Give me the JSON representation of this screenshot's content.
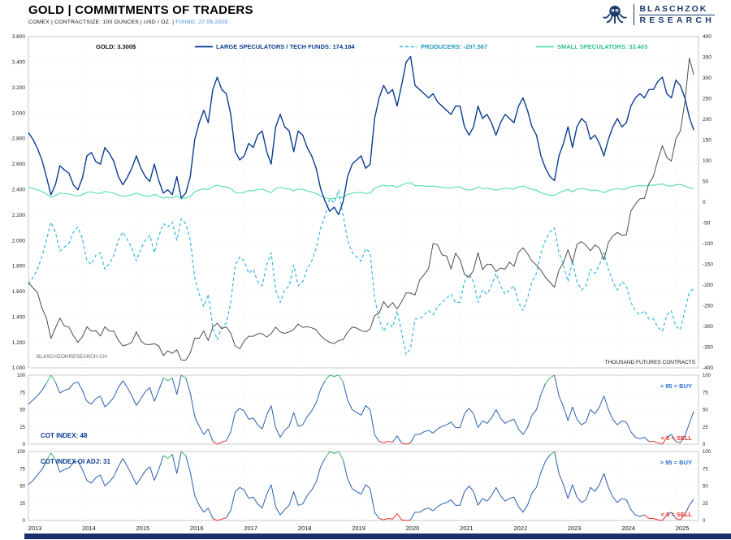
{
  "header": {
    "title": "GOLD | COMMITMENTS OF TRADERS",
    "subtitle_plain": "COMEX | CONTRACTSIZE: 100 OUNCES | USD / OZ. |",
    "subtitle_fixing": "FIXING: 27.05.2025",
    "logo_line1": "BLASCHZOK",
    "logo_line2": "RESEARCH"
  },
  "legend": {
    "gold": "GOLD: 3.300$",
    "large_specs": "LARGE SPECULATORS / TECH FUNDS: 174.184",
    "producers": "PRODUCERS: -207.587",
    "small_specs": "SMALL SPECULATORS: 33.403"
  },
  "labels": {
    "watermark": "BLASCHZOKRESEARCH.CH",
    "right_axis_title": "THOUSAND FUTURES CONTRACTS",
    "buy": "> 95 = BUY",
    "sell": "< 5 = SELL"
  },
  "colors": {
    "gold_line": "#4d4d4d",
    "large_specs": "#0a3d91",
    "producers": "#35b6e6",
    "small_specs": "#5fe0b2",
    "producers_text": "#2596c4",
    "small_specs_text": "#2fbf93",
    "cot_blue": "#2b5fad",
    "cot_green": "#3cb96a",
    "cot_red": "#e63329",
    "grid": "#e4e4e4",
    "border": "#bbbbbb",
    "axis_text": "#222222",
    "watermark_text": "#666666",
    "buy_text": "#2b6fd4",
    "sell_text": "#e63329",
    "bottom_bar": "#1b2f6e"
  },
  "chart_data": {
    "type": "line",
    "x_range": [
      2013,
      2025.42
    ],
    "x_ticks": [
      2013,
      2014,
      2015,
      2016,
      2017,
      2018,
      2019,
      2020,
      2021,
      2022,
      2023,
      2024,
      2025
    ],
    "points_per_year": 12,
    "price_axis": {
      "min": 1000,
      "max": 3600,
      "tick": 200,
      "side": "left"
    },
    "contracts_axis": {
      "min": -400,
      "max": 400,
      "tick": 50,
      "side": "right"
    },
    "series": [
      {
        "name": "GOLD",
        "axis": "price",
        "style": "solid",
        "width": 1,
        "color_key": "gold_line",
        "values": [
          1670,
          1628,
          1592,
          1470,
          1392,
          1230,
          1312,
          1390,
          1328,
          1320,
          1252,
          1200,
          1244,
          1322,
          1288,
          1292,
          1250,
          1322,
          1288,
          1288,
          1216,
          1172,
          1182,
          1200,
          1282,
          1212,
          1184,
          1182,
          1190,
          1172,
          1096,
          1134,
          1114,
          1142,
          1062,
          1060,
          1118,
          1234,
          1232,
          1290,
          1214,
          1320,
          1350,
          1308,
          1322,
          1272,
          1172,
          1150,
          1212,
          1248,
          1248,
          1268,
          1268,
          1242,
          1268,
          1320,
          1282,
          1270,
          1282,
          1302,
          1344,
          1318,
          1324,
          1314,
          1300,
          1252,
          1222,
          1200,
          1190,
          1214,
          1222,
          1282,
          1320,
          1312,
          1292,
          1282,
          1306,
          1410,
          1428,
          1520,
          1472,
          1512,
          1462,
          1518,
          1588,
          1586,
          1572,
          1688,
          1730,
          1782,
          1976,
          1966,
          1886,
          1878,
          1776,
          1900,
          1848,
          1734,
          1708,
          1768,
          1904,
          1770,
          1814,
          1812,
          1756,
          1784,
          1774,
          1830,
          1796,
          1908,
          1942,
          1896,
          1838,
          1806,
          1766,
          1710,
          1672,
          1632,
          1768,
          1824,
          1928,
          1826,
          1968,
          1990,
          1962,
          1918,
          1964,
          1940,
          1848,
          1984,
          2036,
          2062,
          2040,
          2044,
          2230,
          2286,
          2326,
          2330,
          2446,
          2502,
          2634,
          2744,
          2650,
          2624,
          2798,
          2858,
          3085,
          3430,
          3300
        ]
      },
      {
        "name": "LARGE SPECULATORS / TECH FUNDS",
        "axis": "contracts",
        "style": "solid",
        "width": 1.4,
        "color_key": "large_specs",
        "values": [
          168,
          152,
          130,
          102,
          62,
          18,
          42,
          88,
          78,
          70,
          42,
          30,
          58,
          112,
          120,
          98,
          92,
          132,
          118,
          98,
          62,
          42,
          60,
          82,
          112,
          82,
          62,
          50,
          92,
          52,
          22,
          30,
          18,
          62,
          10,
          22,
          62,
          152,
          192,
          222,
          192,
          272,
          302,
          272,
          262,
          212,
          122,
          102,
          112,
          142,
          132,
          162,
          172,
          122,
          92,
          182,
          212,
          182,
          172,
          122,
          172,
          162,
          132,
          112,
          82,
          32,
          2,
          -22,
          -12,
          -30,
          2,
          62,
          92,
          102,
          112,
          82,
          92,
          202,
          252,
          282,
          262,
          272,
          232,
          282,
          338,
          352,
          282,
          272,
          262,
          252,
          262,
          242,
          232,
          222,
          212,
          232,
          232,
          182,
          162,
          182,
          232,
          202,
          212,
          192,
          162,
          192,
          212,
          202,
          192,
          232,
          252,
          222,
          182,
          162,
          112,
          82,
          62,
          52,
          112,
          142,
          182,
          132,
          182,
          202,
          192,
          152,
          162,
          142,
          112,
          152,
          182,
          202,
          182,
          192,
          232,
          252,
          262,
          252,
          272,
          272,
          292,
          302,
          262,
          252,
          295,
          282,
          252,
          205,
          174
        ]
      },
      {
        "name": "PRODUCERS",
        "axis": "contracts",
        "style": "dashed",
        "width": 1.2,
        "color_key": "producers",
        "values": [
          -198,
          -182,
          -162,
          -132,
          -92,
          -48,
          -72,
          -118,
          -108,
          -100,
          -72,
          -60,
          -88,
          -142,
          -150,
          -128,
          -122,
          -162,
          -148,
          -128,
          -92,
          -72,
          -90,
          -112,
          -142,
          -112,
          -92,
          -80,
          -122,
          -82,
          -52,
          -60,
          -48,
          -92,
          -40,
          -52,
          -92,
          -182,
          -222,
          -252,
          -222,
          -302,
          -332,
          -302,
          -292,
          -242,
          -152,
          -132,
          -142,
          -172,
          -162,
          -192,
          -202,
          -152,
          -122,
          -212,
          -242,
          -212,
          -202,
          -152,
          -202,
          -192,
          -162,
          -142,
          -112,
          -62,
          -32,
          8,
          -2,
          28,
          -32,
          -92,
          -122,
          -132,
          -142,
          -112,
          -122,
          -232,
          -282,
          -312,
          -292,
          -302,
          -262,
          -312,
          -368,
          -352,
          -282,
          -282,
          -272,
          -262,
          -272,
          -252,
          -242,
          -232,
          -222,
          -242,
          -242,
          -192,
          -172,
          -192,
          -242,
          -212,
          -222,
          -202,
          -172,
          -202,
          -222,
          -212,
          -202,
          -242,
          -262,
          -232,
          -192,
          -172,
          -122,
          -92,
          -72,
          -62,
          -122,
          -152,
          -192,
          -142,
          -192,
          -212,
          -202,
          -162,
          -172,
          -152,
          -122,
          -162,
          -192,
          -212,
          -192,
          -202,
          -242,
          -262,
          -272,
          -262,
          -282,
          -282,
          -302,
          -312,
          -272,
          -262,
          -300,
          -308,
          -262,
          -218,
          -208
        ]
      },
      {
        "name": "SMALL SPECULATORS",
        "axis": "contracts",
        "style": "solid",
        "width": 1.2,
        "color_key": "small_specs",
        "values": [
          36,
          33,
          30,
          26,
          20,
          12,
          16,
          22,
          21,
          20,
          17,
          15,
          18,
          24,
          25,
          22,
          21,
          26,
          24,
          22,
          17,
          14,
          16,
          18,
          22,
          18,
          15,
          14,
          19,
          14,
          10,
          12,
          10,
          16,
          8,
          10,
          14,
          25,
          29,
          33,
          30,
          38,
          41,
          38,
          37,
          33,
          24,
          22,
          24,
          28,
          27,
          31,
          32,
          27,
          23,
          33,
          36,
          33,
          32,
          27,
          32,
          31,
          27,
          25,
          21,
          15,
          11,
          8,
          9,
          13,
          11,
          19,
          22,
          23,
          24,
          21,
          22,
          34,
          38,
          41,
          39,
          40,
          36,
          41,
          46,
          47,
          40,
          40,
          39,
          38,
          39,
          37,
          36,
          35,
          34,
          37,
          37,
          31,
          29,
          31,
          37,
          33,
          34,
          32,
          29,
          32,
          34,
          33,
          32,
          37,
          39,
          35,
          31,
          29,
          23,
          19,
          17,
          16,
          23,
          27,
          31,
          25,
          31,
          33,
          32,
          28,
          29,
          27,
          23,
          28,
          31,
          33,
          31,
          32,
          37,
          39,
          40,
          39,
          41,
          41,
          43,
          44,
          40,
          39,
          42,
          43,
          39,
          35,
          33
        ]
      }
    ],
    "subcharts": [
      {
        "title": "COT INDEX: 48",
        "ylim": [
          0,
          100
        ],
        "yticks": [
          0,
          25,
          50,
          75,
          100
        ],
        "values": [
          58,
          64,
          70,
          78,
          88,
          100,
          90,
          74,
          78,
          80,
          88,
          90,
          78,
          62,
          58,
          66,
          70,
          54,
          60,
          68,
          82,
          92,
          82,
          70,
          56,
          66,
          76,
          82,
          62,
          78,
          96,
          92,
          96,
          72,
          100,
          96,
          74,
          40,
          26,
          14,
          22,
          4,
          0,
          3,
          5,
          18,
          46,
          52,
          48,
          36,
          38,
          28,
          22,
          42,
          56,
          24,
          10,
          20,
          26,
          46,
          26,
          28,
          40,
          48,
          60,
          80,
          92,
          100,
          98,
          100,
          90,
          64,
          50,
          46,
          42,
          56,
          50,
          14,
          4,
          2,
          4,
          3,
          12,
          2,
          0,
          2,
          14,
          14,
          18,
          20,
          16,
          22,
          26,
          28,
          32,
          24,
          24,
          44,
          52,
          44,
          24,
          34,
          30,
          38,
          50,
          38,
          30,
          34,
          36,
          22,
          14,
          24,
          42,
          50,
          72,
          88,
          96,
          100,
          70,
          54,
          34,
          54,
          36,
          28,
          32,
          50,
          44,
          54,
          70,
          50,
          36,
          28,
          34,
          32,
          18,
          10,
          8,
          10,
          4,
          4,
          2,
          0,
          10,
          14,
          4,
          2,
          12,
          30,
          48
        ]
      },
      {
        "title": "COT INDEX OI ADJ: 31",
        "ylim": [
          0,
          100
        ],
        "yticks": [
          0,
          25,
          50,
          75,
          100
        ],
        "values": [
          52,
          58,
          66,
          74,
          86,
          98,
          88,
          70,
          74,
          76,
          84,
          86,
          74,
          58,
          54,
          62,
          66,
          50,
          56,
          64,
          78,
          90,
          78,
          66,
          52,
          62,
          72,
          78,
          58,
          74,
          94,
          90,
          96,
          68,
          100,
          94,
          70,
          36,
          22,
          12,
          18,
          3,
          0,
          2,
          4,
          15,
          42,
          48,
          44,
          32,
          34,
          24,
          18,
          38,
          52,
          20,
          8,
          16,
          22,
          42,
          22,
          24,
          36,
          44,
          56,
          78,
          90,
          100,
          97,
          100,
          88,
          60,
          46,
          42,
          38,
          52,
          46,
          12,
          3,
          1,
          3,
          2,
          10,
          1,
          0,
          1,
          12,
          12,
          16,
          18,
          14,
          20,
          24,
          26,
          30,
          22,
          22,
          42,
          50,
          42,
          22,
          32,
          28,
          36,
          48,
          36,
          28,
          32,
          34,
          20,
          12,
          22,
          40,
          48,
          70,
          86,
          95,
          100,
          68,
          52,
          32,
          52,
          34,
          26,
          30,
          48,
          42,
          52,
          68,
          48,
          34,
          26,
          32,
          30,
          16,
          8,
          6,
          8,
          3,
          3,
          1,
          0,
          8,
          12,
          3,
          1,
          9,
          22,
          31
        ]
      }
    ]
  }
}
